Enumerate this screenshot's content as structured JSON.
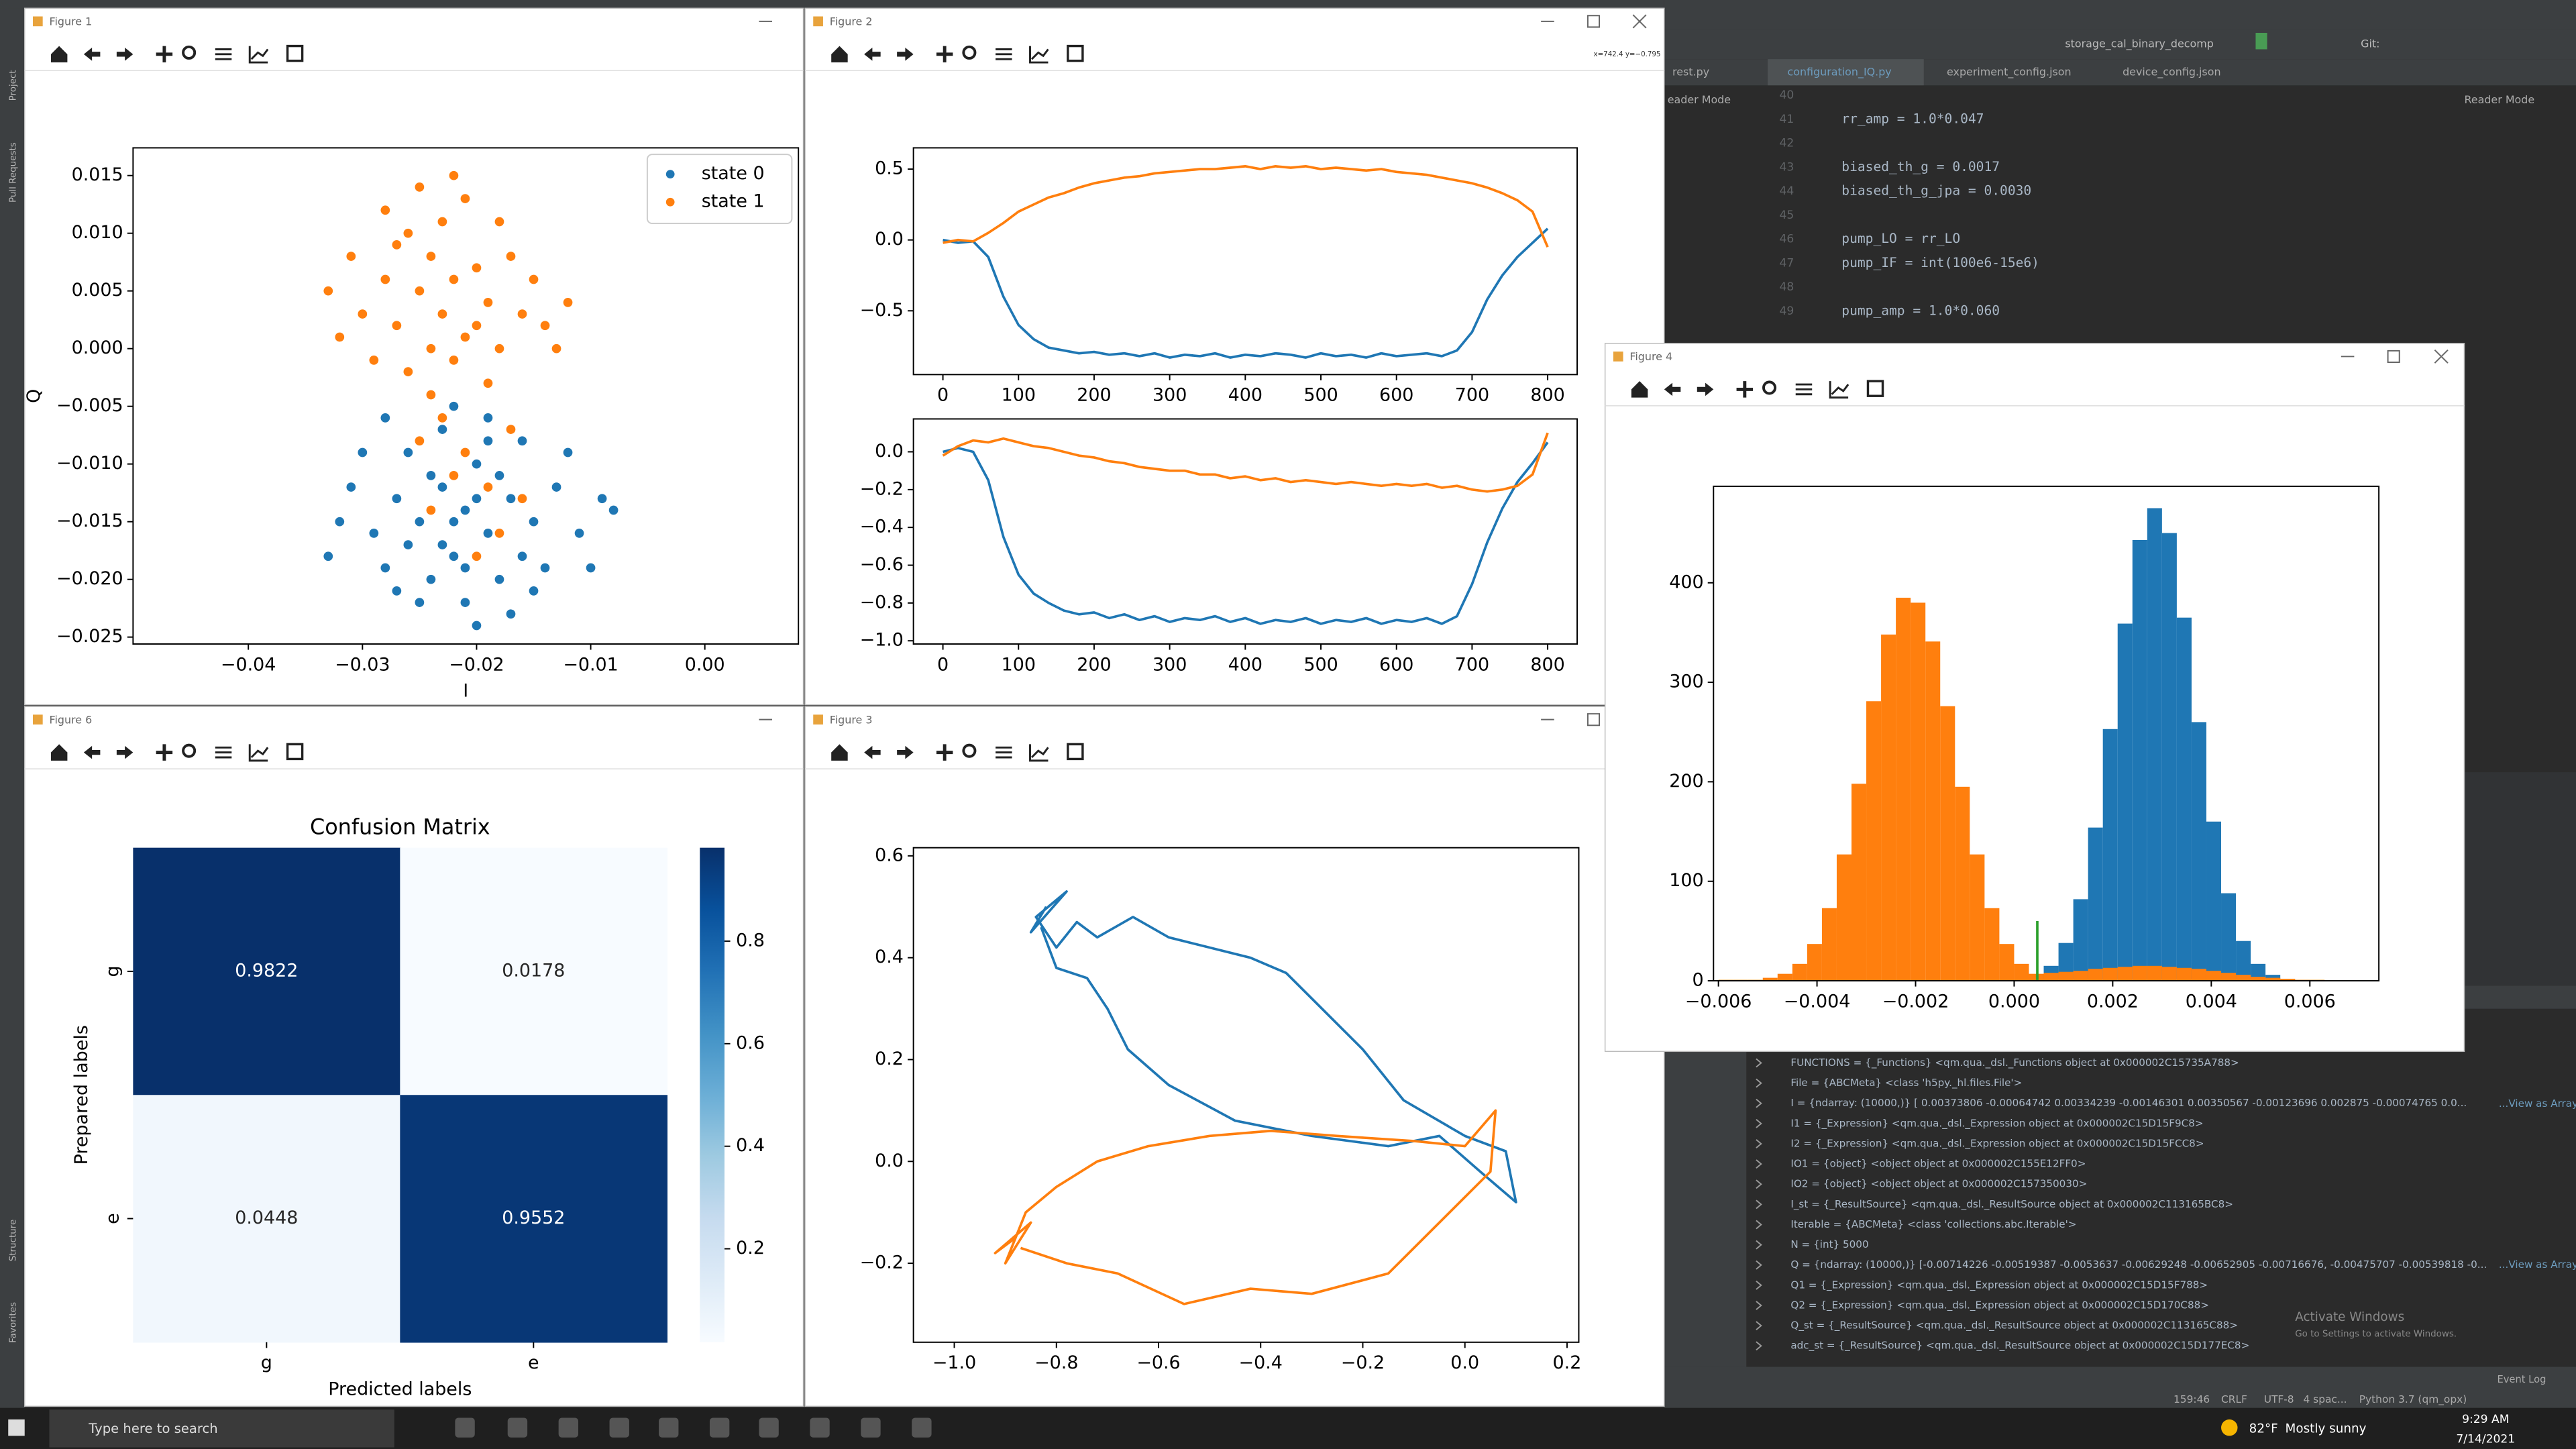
{
  "windows": {
    "fig1": "Figure 1",
    "fig2": "Figure 2",
    "fig6": "Figure 6",
    "fig3": "Figure 3",
    "fig4": "Figure 4",
    "fig2_coords": "x=742.4 y=−0.795"
  },
  "sidebar": {
    "top": [
      "Project",
      "Pull Requests"
    ],
    "bottom": [
      "Structure",
      "Favorites"
    ]
  },
  "ide": {
    "run_config": "storage_cal_binary_decomp",
    "git": "Git:",
    "tabs": [
      "rest.py",
      "configuration_IQ.py",
      "experiment_config.json",
      "device_config.json"
    ],
    "reader_mode": "Reader Mode",
    "reader_mode_left": "eader Mode",
    "line_numbers": [
      40,
      41,
      42,
      43,
      44,
      45,
      46,
      47,
      48,
      49
    ],
    "code": [
      null,
      "rr_amp = 1.0*0.047",
      null,
      "biased_th_g = 0.0017",
      "biased_th_g_jpa = 0.0030",
      null,
      "pump_LO = rr_LO",
      "pump_IF = int(100e6-15e6)",
      null,
      "pump_amp = 1.0*0.060"
    ],
    "variables": [
      "FUNCTIONS = {_Functions} <qm.qua._dsl._Functions object at 0x000002C15735A788>",
      "File = {ABCMeta} <class 'h5py._hl.files.File'>",
      "I = {ndarray: (10000,)} [ 0.00373806 -0.00064742  0.00334239 -0.00146301  0.00350567 -0.00123696  0.002875   -0.00074765  0.0...",
      "I1 = {_Expression} <qm.qua._dsl._Expression object at 0x000002C15D15F9C8>",
      "I2 = {_Expression} <qm.qua._dsl._Expression object at 0x000002C15D15FCC8>",
      "IO1 = {object} <object object at 0x000002C155E12FF0>",
      "IO2 = {object} <object object at 0x000002C157350030>",
      "I_st = {_ResultSource} <qm.qua._dsl._ResultSource object at 0x000002C113165BC8>",
      "Iterable = {ABCMeta} <class 'collections.abc.Iterable'>",
      "N = {int} 5000",
      "Q = {ndarray: (10000,)} [-0.00714226 -0.00519387 -0.0053637  -0.00629248 -0.00652905 -0.00716676, -0.00475707 -0.00539818 -0...",
      "Q1 = {_Expression} <qm.qua._dsl._Expression object at 0x000002C15D15F788>",
      "Q2 = {_Expression} <qm.qua._dsl._Expression object at 0x000002C15D170C88>",
      "Q_st = {_ResultSource} <qm.qua._dsl._ResultSource object at 0x000002C113165C88>",
      "adc_st = {_ResultSource} <qm.qua._dsl._ResultSource object at 0x000002C15D177EC8>"
    ],
    "view_as_array": "...View as Array",
    "activate_title": "Activate Windows",
    "activate_sub": "Go to Settings to activate Windows.",
    "event_log": "Event Log",
    "status": [
      "159:46",
      "CRLF",
      "UTF-8",
      "4 spac...",
      "Python 3.7 (qm_opx)"
    ]
  },
  "taskbar": {
    "search": "Type here to search",
    "temp": "82°F",
    "weather": "Mostly sunny",
    "time": "9:29 AM",
    "date": "7/14/2021"
  },
  "chart_data": [
    {
      "type": "scatter",
      "xlabel": "I",
      "ylabel": "Q",
      "xlim": [
        -0.0501,
        0.0082
      ],
      "ylim": [
        -0.0256,
        0.0174
      ],
      "xticks": [
        {
          "value": -0.04,
          "label": "−0.04"
        },
        {
          "value": -0.03,
          "label": "−0.03"
        },
        {
          "value": -0.02,
          "label": "−0.02"
        },
        {
          "value": -0.01,
          "label": "−0.01"
        },
        {
          "value": 0,
          "label": "0.00"
        }
      ],
      "yticks": [
        0.015,
        {
          "value": 0.01,
          "label": "0.010"
        },
        0.005,
        {
          "value": 0,
          "label": "0.000"
        },
        {
          "value": -0.005,
          "label": "−0.005"
        },
        {
          "value": -0.01,
          "label": "−0.010"
        },
        {
          "value": -0.015,
          "label": "−0.015"
        },
        {
          "value": -0.02,
          "label": "−0.020"
        },
        {
          "value": -0.025,
          "label": "−0.025"
        }
      ],
      "legend": "upper right",
      "series": [
        {
          "name": "state 0",
          "color": "#1f77b4",
          "x": [
            -0.021,
            -0.023,
            -0.019,
            -0.025,
            -0.017,
            -0.022,
            -0.02,
            -0.027,
            -0.015,
            -0.024,
            -0.018,
            -0.029,
            -0.013,
            -0.021,
            -0.026,
            -0.016,
            -0.031,
            -0.011,
            -0.023,
            -0.019,
            -0.028,
            -0.014,
            -0.02,
            -0.025,
            -0.017,
            -0.009,
            -0.032,
            -0.022,
            -0.02,
            -0.024,
            -0.018,
            -0.026,
            -0.016,
            -0.012,
            -0.03,
            -0.021,
            -0.023,
            -0.019,
            -0.015,
            -0.027,
            -0.01,
            -0.033,
            -0.008,
            -0.022,
            -0.028
          ],
          "values": [
            -0.014,
            -0.012,
            -0.016,
            -0.015,
            -0.013,
            -0.018,
            -0.01,
            -0.013,
            -0.015,
            -0.02,
            -0.02,
            -0.016,
            -0.012,
            -0.022,
            -0.009,
            -0.008,
            -0.012,
            -0.016,
            -0.007,
            -0.006,
            -0.019,
            -0.019,
            -0.024,
            -0.022,
            -0.023,
            -0.013,
            -0.015,
            -0.015,
            -0.013,
            -0.011,
            -0.011,
            -0.017,
            -0.018,
            -0.009,
            -0.009,
            -0.019,
            -0.017,
            -0.008,
            -0.021,
            -0.021,
            -0.019,
            -0.018,
            -0.014,
            -0.005,
            -0.006
          ]
        },
        {
          "name": "state 1",
          "color": "#ff7f0e",
          "x": [
            -0.023,
            -0.025,
            -0.021,
            -0.027,
            -0.019,
            -0.024,
            -0.022,
            -0.026,
            -0.02,
            -0.028,
            -0.018,
            -0.023,
            -0.03,
            -0.016,
            -0.024,
            -0.021,
            -0.029,
            -0.017,
            -0.032,
            -0.014,
            -0.025,
            -0.026,
            -0.019,
            -0.031,
            -0.015,
            -0.022,
            -0.024,
            -0.02,
            -0.027,
            -0.018,
            -0.033,
            -0.012,
            -0.023,
            -0.021,
            -0.019,
            -0.024,
            -0.018,
            -0.022,
            -0.02,
            -0.016,
            -0.025,
            -0.017,
            -0.022,
            -0.028,
            -0.013
          ],
          "values": [
            0.003,
            0.005,
            0.001,
            0.002,
            0.004,
            0.008,
            -0.001,
            -0.002,
            0.007,
            0.006,
            0.0,
            0.011,
            0.003,
            0.003,
            -0.004,
            0.013,
            -0.001,
            0.008,
            0.001,
            0.002,
            0.014,
            0.01,
            -0.003,
            0.008,
            0.006,
            0.006,
            0.0,
            0.002,
            0.009,
            0.011,
            0.005,
            0.004,
            -0.006,
            -0.009,
            -0.012,
            -0.014,
            -0.016,
            -0.011,
            -0.018,
            -0.013,
            -0.008,
            -0.007,
            0.015,
            0.012,
            0.0
          ]
        }
      ]
    },
    {
      "type": "line",
      "xlim": [
        -39,
        839
      ],
      "ylim": [
        -0.95,
        0.65
      ],
      "xticks": [
        0,
        100,
        200,
        300,
        400,
        500,
        600,
        700,
        800
      ],
      "yticks": [
        0.5,
        {
          "value": 0,
          "label": "0.0"
        },
        {
          "value": -0.5,
          "label": "−0.5"
        }
      ],
      "x": [
        0,
        20,
        40,
        60,
        80,
        100,
        120,
        140,
        160,
        180,
        200,
        220,
        240,
        260,
        280,
        300,
        320,
        340,
        360,
        380,
        400,
        420,
        440,
        460,
        480,
        500,
        520,
        540,
        560,
        580,
        600,
        620,
        640,
        660,
        680,
        700,
        720,
        740,
        760,
        780,
        800
      ],
      "series": [
        {
          "color": "#1f77b4",
          "values": [
            0.0,
            -0.02,
            -0.01,
            -0.12,
            -0.4,
            -0.6,
            -0.7,
            -0.76,
            -0.78,
            -0.8,
            -0.79,
            -0.81,
            -0.8,
            -0.82,
            -0.8,
            -0.83,
            -0.81,
            -0.82,
            -0.8,
            -0.83,
            -0.81,
            -0.82,
            -0.8,
            -0.81,
            -0.83,
            -0.8,
            -0.82,
            -0.81,
            -0.83,
            -0.8,
            -0.82,
            -0.81,
            -0.8,
            -0.82,
            -0.78,
            -0.65,
            -0.42,
            -0.25,
            -0.12,
            -0.02,
            0.08
          ]
        },
        {
          "color": "#ff7f0e",
          "values": [
            -0.02,
            0.0,
            -0.01,
            0.05,
            0.12,
            0.2,
            0.25,
            0.3,
            0.33,
            0.37,
            0.4,
            0.42,
            0.44,
            0.45,
            0.47,
            0.48,
            0.49,
            0.5,
            0.5,
            0.51,
            0.52,
            0.5,
            0.52,
            0.51,
            0.52,
            0.5,
            0.51,
            0.5,
            0.49,
            0.5,
            0.48,
            0.47,
            0.46,
            0.44,
            0.42,
            0.4,
            0.37,
            0.33,
            0.28,
            0.2,
            -0.05
          ]
        }
      ]
    },
    {
      "type": "line",
      "xlim": [
        -39,
        839
      ],
      "ylim": [
        -1.017,
        0.174
      ],
      "xticks": [
        0,
        100,
        200,
        300,
        400,
        500,
        600,
        700,
        800
      ],
      "yticks": [
        {
          "value": 0,
          "label": "0.0"
        },
        {
          "value": -0.2,
          "label": "−0.2"
        },
        {
          "value": -0.4,
          "label": "−0.4"
        },
        {
          "value": -0.6,
          "label": "−0.6"
        },
        {
          "value": -0.8,
          "label": "−0.8"
        },
        {
          "value": -1,
          "label": "−1.0"
        }
      ],
      "x": [
        0,
        20,
        40,
        60,
        80,
        100,
        120,
        140,
        160,
        180,
        200,
        220,
        240,
        260,
        280,
        300,
        320,
        340,
        360,
        380,
        400,
        420,
        440,
        460,
        480,
        500,
        520,
        540,
        560,
        580,
        600,
        620,
        640,
        660,
        680,
        700,
        720,
        740,
        760,
        780,
        800
      ],
      "series": [
        {
          "color": "#1f77b4",
          "values": [
            0.0,
            0.02,
            0.0,
            -0.15,
            -0.45,
            -0.65,
            -0.75,
            -0.8,
            -0.84,
            -0.86,
            -0.85,
            -0.88,
            -0.86,
            -0.89,
            -0.87,
            -0.9,
            -0.88,
            -0.89,
            -0.87,
            -0.9,
            -0.88,
            -0.91,
            -0.89,
            -0.9,
            -0.88,
            -0.91,
            -0.89,
            -0.9,
            -0.88,
            -0.91,
            -0.89,
            -0.9,
            -0.88,
            -0.91,
            -0.87,
            -0.7,
            -0.48,
            -0.3,
            -0.16,
            -0.06,
            0.05
          ]
        },
        {
          "color": "#ff7f0e",
          "values": [
            -0.02,
            0.03,
            0.06,
            0.05,
            0.07,
            0.05,
            0.03,
            0.02,
            0.0,
            -0.02,
            -0.03,
            -0.05,
            -0.06,
            -0.08,
            -0.09,
            -0.1,
            -0.1,
            -0.12,
            -0.12,
            -0.14,
            -0.13,
            -0.15,
            -0.14,
            -0.16,
            -0.15,
            -0.16,
            -0.17,
            -0.16,
            -0.17,
            -0.18,
            -0.17,
            -0.18,
            -0.17,
            -0.19,
            -0.18,
            -0.2,
            -0.21,
            -0.2,
            -0.18,
            -0.12,
            0.1
          ]
        }
      ]
    },
    {
      "type": "heatmap",
      "title": "Confusion Matrix",
      "xlabel": "Predicted labels",
      "ylabel": "Prepared labels",
      "cmap": "Blues",
      "columns": [
        "g",
        "e"
      ],
      "rows": [
        "g",
        "e"
      ],
      "values": [
        [
          0.9822,
          0.0178
        ],
        [
          0.0448,
          0.9552
        ]
      ],
      "colorbar_ticks": [
        0.8,
        0.6,
        0.4,
        0.2
      ]
    },
    {
      "type": "line",
      "xlim": [
        -1.08,
        0.223
      ],
      "ylim": [
        -0.355,
        0.616
      ],
      "xticks": [
        {
          "value": -1,
          "label": "−1.0"
        },
        {
          "value": -0.8,
          "label": "−0.8"
        },
        {
          "value": -0.6,
          "label": "−0.6"
        },
        {
          "value": -0.4,
          "label": "−0.4"
        },
        {
          "value": -0.2,
          "label": "−0.2"
        },
        {
          "value": 0,
          "label": "0.0"
        },
        0.2
      ],
      "yticks": [
        0.6,
        0.4,
        0.2,
        {
          "value": 0,
          "label": "0.0"
        },
        {
          "value": -0.2,
          "label": "−0.2"
        }
      ],
      "series": [
        {
          "color": "#1f77b4",
          "x": [
            -0.82,
            -0.85,
            -0.78,
            -0.84,
            -0.8,
            -0.76,
            -0.72,
            -0.65,
            -0.58,
            -0.5,
            -0.42,
            -0.35,
            -0.28,
            -0.2,
            -0.12,
            0.0,
            0.08,
            0.1,
            0.03,
            -0.05,
            -0.15,
            -0.3,
            -0.45,
            -0.58,
            -0.66,
            -0.7,
            -0.74,
            -0.8,
            -0.83
          ],
          "values": [
            0.5,
            0.45,
            0.53,
            0.48,
            0.42,
            0.47,
            0.44,
            0.48,
            0.44,
            0.42,
            0.4,
            0.37,
            0.3,
            0.22,
            0.12,
            0.05,
            0.02,
            -0.08,
            -0.02,
            0.05,
            0.03,
            0.05,
            0.08,
            0.15,
            0.22,
            0.3,
            0.36,
            0.38,
            0.46
          ]
        },
        {
          "color": "#ff7f0e",
          "x": [
            -0.88,
            -0.92,
            -0.85,
            -0.9,
            -0.86,
            -0.8,
            -0.72,
            -0.62,
            -0.5,
            -0.38,
            -0.25,
            -0.1,
            0.0,
            0.06,
            0.05,
            -0.05,
            -0.15,
            -0.3,
            -0.42,
            -0.55,
            -0.68,
            -0.78,
            -0.87
          ],
          "values": [
            -0.15,
            -0.18,
            -0.12,
            -0.2,
            -0.1,
            -0.05,
            0.0,
            0.03,
            0.05,
            0.06,
            0.05,
            0.04,
            0.03,
            0.1,
            -0.02,
            -0.12,
            -0.22,
            -0.26,
            -0.25,
            -0.28,
            -0.22,
            -0.2,
            -0.17
          ]
        }
      ]
    },
    {
      "type": "histogram",
      "xlim": [
        -0.0061,
        0.0074
      ],
      "ylim": [
        0,
        497
      ],
      "xticks": [
        {
          "value": -0.006,
          "label": "−0.006"
        },
        {
          "value": -0.004,
          "label": "−0.004"
        },
        {
          "value": -0.002,
          "label": "−0.002"
        },
        {
          "value": 0,
          "label": "0.000"
        },
        0.002,
        0.004,
        0.006
      ],
      "yticks": [
        0,
        100,
        200,
        300,
        400
      ],
      "bins": [
        -0.006,
        -0.0057,
        -0.0054,
        -0.0051,
        -0.0048,
        -0.0045,
        -0.0042,
        -0.0039,
        -0.0036,
        -0.0033,
        -0.003,
        -0.0027,
        -0.0024,
        -0.0021,
        -0.0018,
        -0.0015,
        -0.0012,
        -0.0009,
        -0.0006,
        -0.0003,
        0,
        0.0003,
        0.0006,
        0.0009,
        0.0012,
        0.0015,
        0.0018,
        0.0021,
        0.0024,
        0.0027,
        0.003,
        0.0033,
        0.0036,
        0.0039,
        0.0042,
        0.0045,
        0.0048,
        0.0051,
        0.0054,
        0.0057,
        0.006,
        0.0063,
        0.0066,
        0.0069
      ],
      "series": [
        {
          "color": "#1f77b4",
          "values": [
            0,
            0,
            0,
            0,
            0,
            0,
            0,
            0,
            0,
            0,
            0,
            0,
            0,
            0,
            0,
            0,
            0,
            0,
            0,
            0,
            2,
            5,
            15,
            38,
            82,
            154,
            253,
            359,
            443,
            475,
            450,
            365,
            260,
            160,
            88,
            40,
            17,
            6,
            2,
            1,
            0,
            0,
            0
          ]
        },
        {
          "color": "#ff7f0e",
          "values": [
            1,
            1,
            1,
            3,
            7,
            17,
            37,
            73,
            127,
            198,
            281,
            348,
            385,
            380,
            341,
            276,
            195,
            127,
            73,
            37,
            17,
            7,
            8,
            9,
            10,
            12,
            13,
            14,
            15,
            15,
            14,
            13,
            12,
            10,
            8,
            6,
            4,
            3,
            2,
            1,
            1,
            0,
            0
          ]
        }
      ],
      "vlines": [
        {
          "x": 0.00047,
          "ymax": 60,
          "color": "#2ca02c"
        }
      ]
    }
  ]
}
